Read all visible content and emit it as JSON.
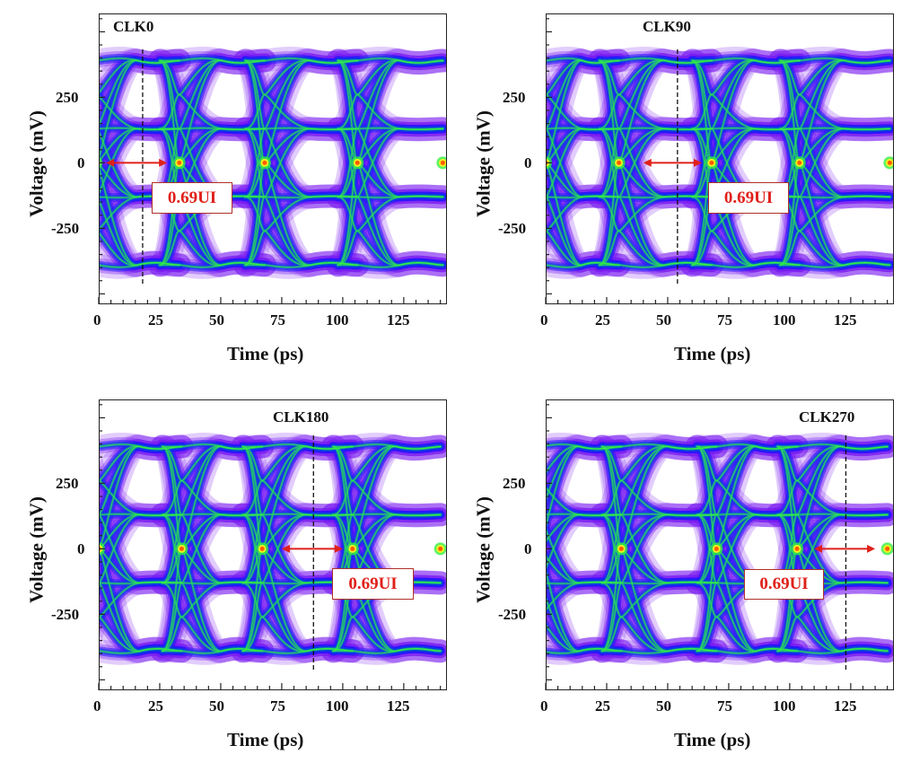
{
  "figure": {
    "colors": {
      "outer": "#7a1cf0",
      "mid": "#2a14ff",
      "core": "#0a40e0",
      "trace": "#18a890",
      "bright": "#36f040",
      "hot": "#f0f020",
      "peak": "#ff5a00",
      "annotation": "#e0201a",
      "frame": "#222222"
    }
  },
  "chart_data": [
    {
      "type": "heatmap",
      "subtype": "eye-diagram",
      "title": "CLK0",
      "xlabel": "Time (ps)",
      "ylabel": "Voltage (mV)",
      "xlim": [
        0,
        142.7
      ],
      "ylim": [
        -540,
        570
      ],
      "xticks": [
        0,
        25,
        50,
        75,
        100,
        125
      ],
      "xtick_labels": [
        "0",
        "25",
        "50",
        "75",
        "100",
        "125"
      ],
      "yticks": [
        250,
        0,
        -250
      ],
      "ytick_labels": [
        "250",
        "0",
        "-250"
      ],
      "grid": false,
      "sampling_clock_ps": 18,
      "crossings_ps": [
        -1,
        33,
        68,
        106,
        141
      ],
      "eye_opening_arrow_ps": [
        3,
        28
      ],
      "annotation": "0.69UI",
      "signal_levels_mV": [
        -390,
        -130,
        130,
        390
      ]
    },
    {
      "type": "heatmap",
      "subtype": "eye-diagram",
      "title": "CLK90",
      "xlabel": "Time (ps)",
      "ylabel": "Voltage (mV)",
      "xlim": [
        0,
        142.7
      ],
      "ylim": [
        -540,
        570
      ],
      "xticks": [
        0,
        25,
        50,
        75,
        100,
        125
      ],
      "xtick_labels": [
        "0",
        "25",
        "50",
        "75",
        "100",
        "125"
      ],
      "yticks": [
        250,
        0,
        -250
      ],
      "ytick_labels": [
        "250",
        "0",
        "-250"
      ],
      "grid": false,
      "sampling_clock_ps": 54,
      "crossings_ps": [
        0,
        30,
        68,
        104,
        141
      ],
      "eye_opening_arrow_ps": [
        40,
        64
      ],
      "annotation": "0.69UI",
      "signal_levels_mV": [
        -390,
        -130,
        130,
        390
      ]
    },
    {
      "type": "heatmap",
      "subtype": "eye-diagram",
      "title": "CLK180",
      "xlabel": "Time (ps)",
      "ylabel": "Voltage (mV)",
      "xlim": [
        0,
        142.7
      ],
      "ylim": [
        -540,
        570
      ],
      "xticks": [
        0,
        25,
        50,
        75,
        100,
        125
      ],
      "xtick_labels": [
        "0",
        "25",
        "50",
        "75",
        "100",
        "125"
      ],
      "yticks": [
        250,
        0,
        -250
      ],
      "ytick_labels": [
        "250",
        "0",
        "-250"
      ],
      "grid": false,
      "sampling_clock_ps": 88,
      "crossings_ps": [
        0,
        34,
        67,
        104,
        140
      ],
      "eye_opening_arrow_ps": [
        75,
        100
      ],
      "annotation": "0.69UI",
      "signal_levels_mV": [
        -390,
        -130,
        130,
        390
      ]
    },
    {
      "type": "heatmap",
      "subtype": "eye-diagram",
      "title": "CLK270",
      "xlabel": "Time (ps)",
      "ylabel": "Voltage (mV)",
      "xlim": [
        0,
        142.7
      ],
      "ylim": [
        -540,
        570
      ],
      "xticks": [
        0,
        25,
        50,
        75,
        100,
        125
      ],
      "xtick_labels": [
        "0",
        "25",
        "50",
        "75",
        "100",
        "125"
      ],
      "yticks": [
        250,
        0,
        -250
      ],
      "ytick_labels": [
        "250",
        "0",
        "-250"
      ],
      "grid": false,
      "sampling_clock_ps": 123,
      "crossings_ps": [
        -3,
        31,
        70,
        103,
        140
      ],
      "eye_opening_arrow_ps": [
        110,
        135
      ],
      "annotation": "0.69UI",
      "signal_levels_mV": [
        -390,
        -130,
        130,
        390
      ]
    }
  ]
}
